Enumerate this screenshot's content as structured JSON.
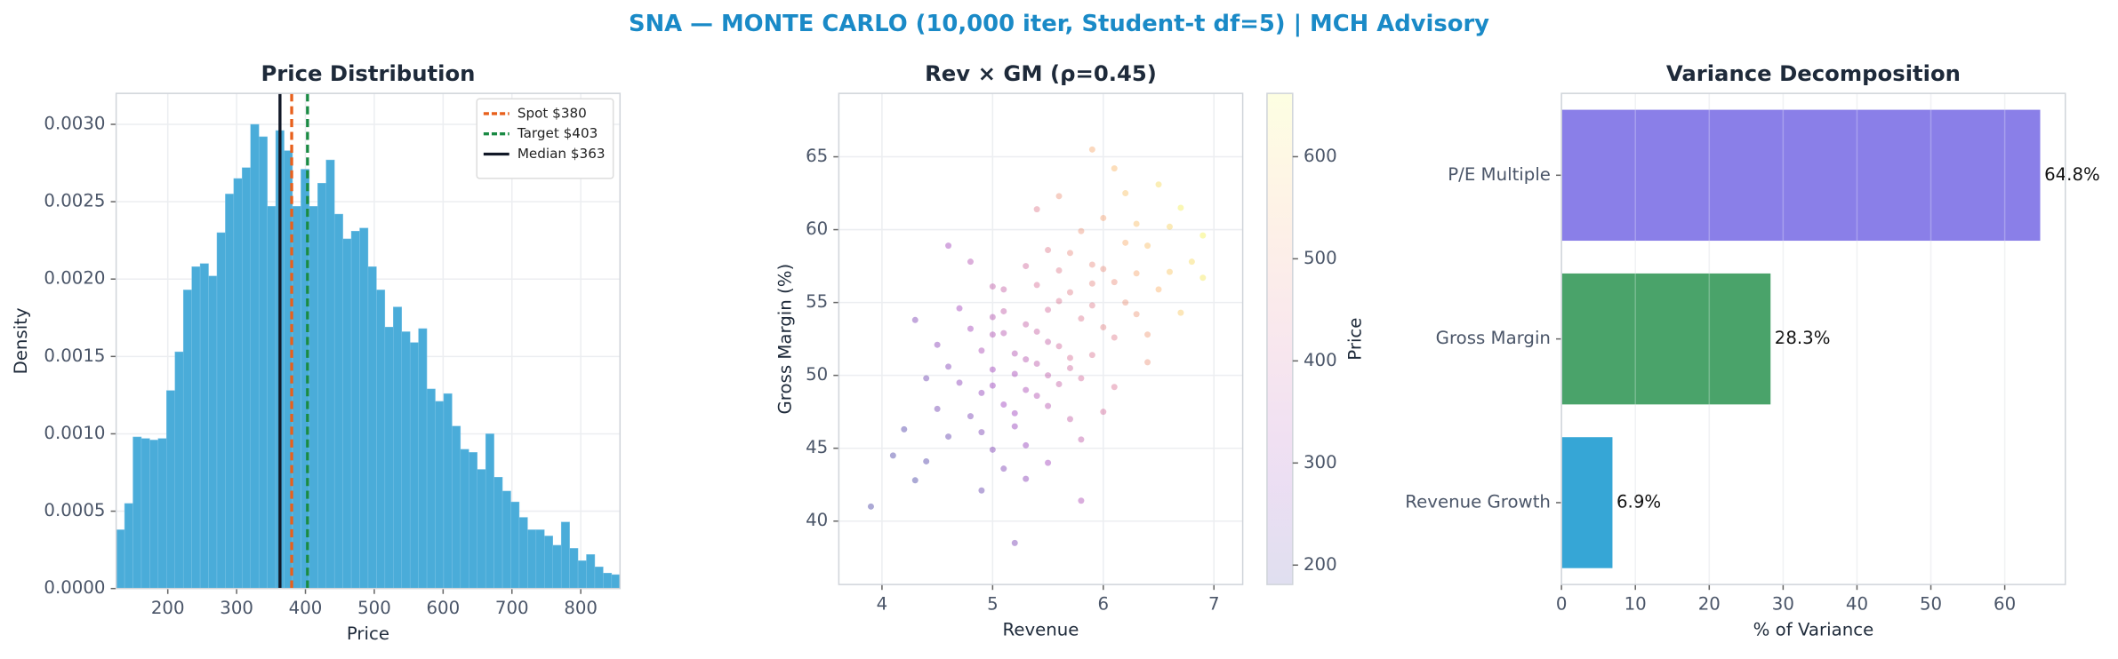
{
  "title": "SNA — MONTE CARLO (10,000 iter, Student-t df=5) | MCH Advisory",
  "chart_data": [
    {
      "type": "histogram",
      "title": "Price Distribution",
      "xlabel": "Price",
      "ylabel": "Density",
      "color": "#4aacd9",
      "bins": [
        125,
        137.2,
        149.4,
        161.6,
        173.8,
        186,
        198.2,
        210.4,
        222.6,
        234.8,
        247,
        259.2,
        271.4,
        283.6,
        295.8,
        308,
        320.2,
        332.4,
        344.6,
        356.8,
        369,
        381.2,
        393.4,
        405.6,
        417.8,
        430,
        442.2,
        454.4,
        466.6,
        478.8,
        491,
        503.2,
        515.4,
        527.6,
        539.8,
        552,
        564.2,
        576.4,
        588.6,
        600.8,
        613,
        625.2,
        637.4,
        649.6,
        661.8,
        674,
        686.2,
        698.4,
        710.6,
        722.8,
        735,
        747.2,
        759.4,
        771.6,
        783.8,
        796,
        808.2,
        820.4,
        832.6,
        844.8,
        857
      ],
      "values": [
        0.00038,
        0.00055,
        0.00098,
        0.00097,
        0.00096,
        0.00097,
        0.00128,
        0.00153,
        0.00193,
        0.00208,
        0.0021,
        0.00202,
        0.0023,
        0.00255,
        0.00265,
        0.00272,
        0.003,
        0.00292,
        0.00247,
        0.00296,
        0.00283,
        0.00247,
        0.00271,
        0.00247,
        0.00262,
        0.00277,
        0.00242,
        0.00226,
        0.00231,
        0.00233,
        0.00208,
        0.00193,
        0.00169,
        0.00182,
        0.00166,
        0.00159,
        0.00168,
        0.00129,
        0.00121,
        0.00126,
        0.00105,
        0.0009,
        0.00088,
        0.00077,
        0.001,
        0.00072,
        0.00063,
        0.00056,
        0.00046,
        0.00038,
        0.00038,
        0.00034,
        0.00028,
        0.00043,
        0.00026,
        0.00018,
        0.00022,
        0.00014,
        0.0001,
        9e-05
      ],
      "xlim": [
        125,
        857
      ],
      "xticks": [
        200,
        300,
        400,
        500,
        600,
        700,
        800
      ],
      "ylim": [
        0,
        0.0032
      ],
      "yticks": [
        {
          "value": 0,
          "label": "0.0000"
        },
        {
          "value": 0.0005,
          "label": "0.0005"
        },
        {
          "value": 0.001,
          "label": "0.0010"
        },
        {
          "value": 0.0015,
          "label": "0.0015"
        },
        {
          "value": 0.002,
          "label": "0.0020"
        },
        {
          "value": 0.0025,
          "label": "0.0025"
        },
        {
          "value": 0.003,
          "label": "0.0030"
        }
      ],
      "grid": true,
      "legend": "upper right",
      "vlines": [
        {
          "label": "Spot $380",
          "value": 380,
          "color": "#e8601c",
          "style": "dashed"
        },
        {
          "label": "Target $403",
          "value": 403,
          "color": "#1a8a43",
          "style": "dashed"
        },
        {
          "label": "Median $363",
          "value": 363,
          "color": "#111827",
          "style": "solid"
        }
      ]
    },
    {
      "type": "scatter",
      "title": "Rev × GM (ρ=0.45)",
      "xlabel": "Revenue",
      "ylabel": "Gross Margin (%)",
      "colorbar_label": "Price",
      "colormap": "plasma",
      "x": [
        5.2,
        5.5,
        4.8,
        6.1,
        5.9,
        5.0,
        5.3,
        4.6,
        6.4,
        5.7,
        5.1,
        6.0,
        5.4,
        4.9,
        5.6,
        6.3,
        5.2,
        4.4,
        5.8,
        6.6,
        5.3,
        5.0,
        6.2,
        5.5,
        4.7,
        5.9,
        6.8,
        5.1,
        4.5,
        5.6,
        6.1,
        5.4,
        4.9,
        5.7,
        6.5,
        5.2,
        4.3,
        5.8,
        6.0,
        5.0,
        5.5,
        6.3,
        4.8,
        5.9,
        5.3,
        6.7,
        5.6,
        4.6,
        6.2,
        5.1,
        5.4,
        6.9,
        4.2,
        5.7,
        5.0,
        6.4,
        5.8,
        4.9,
        5.3,
        6.0,
        5.5,
        4.7,
        6.6,
        5.2,
        3.9,
        5.6,
        6.1,
        4.4,
        5.9,
        5.4,
        6.5,
        5.1,
        5.7,
        4.8,
        6.3,
        5.0,
        5.5,
        6.0,
        4.5,
        5.8,
        6.2,
        5.3,
        4.1,
        6.4,
        5.6,
        5.2,
        5.9,
        4.6,
        6.7,
        5.4,
        5.1,
        5.8,
        4.3,
        6.1,
        5.5,
        4.9,
        5.7,
        6.9,
        5.0,
        5.3
      ],
      "y": [
        50.1,
        52.3,
        47.2,
        56.4,
        54.8,
        49.3,
        53.5,
        45.8,
        58.9,
        51.2,
        48.0,
        57.3,
        50.8,
        51.7,
        55.1,
        54.2,
        46.5,
        44.1,
        53.9,
        60.2,
        49.0,
        52.8,
        59.1,
        47.9,
        49.5,
        57.6,
        57.8,
        54.4,
        47.7,
        52.0,
        52.6,
        56.2,
        46.1,
        58.4,
        55.9,
        51.5,
        42.8,
        49.8,
        60.8,
        44.9,
        50.0,
        57.0,
        53.2,
        51.4,
        45.2,
        61.5,
        49.4,
        50.6,
        55.0,
        52.9,
        48.6,
        59.6,
        46.3,
        55.7,
        56.1,
        52.8,
        59.9,
        42.1,
        57.5,
        53.3,
        44.0,
        54.6,
        57.1,
        47.4,
        41.0,
        62.3,
        49.2,
        49.8,
        56.3,
        53.0,
        63.1,
        43.6,
        47.0,
        57.8,
        60.4,
        50.4,
        58.6,
        47.5,
        52.1,
        45.6,
        62.5,
        51.1,
        44.5,
        50.9,
        57.2,
        38.5,
        65.5,
        58.9,
        54.3,
        61.4,
        55.9,
        41.4,
        53.8,
        64.2,
        54.5,
        48.8,
        50.5,
        56.7,
        54.0,
        42.9
      ],
      "color_values": [
        318,
        378,
        250,
        487,
        447,
        298,
        378,
        220,
        565,
        418,
        302,
        484,
        362,
        328,
        430,
        500,
        288,
        195,
        436,
        598,
        326,
        338,
        540,
        350,
        274,
        478,
        610,
        370,
        236,
        404,
        448,
        420,
        252,
        478,
        548,
        342,
        182,
        410,
        520,
        262,
        368,
        530,
        316,
        430,
        286,
        640,
        380,
        262,
        492,
        352,
        340,
        650,
        196,
        452,
        372,
        508,
        496,
        224,
        404,
        462,
        310,
        310,
        580,
        300,
        186,
        492,
        428,
        230,
        470,
        384,
        612,
        254,
        378,
        344,
        566,
        310,
        444,
        410,
        270,
        368,
        572,
        350,
        190,
        492,
        446,
        250,
        532,
        312,
        584,
        444,
        380,
        330,
        254,
        556,
        410,
        282,
        400,
        632,
        348,
        270
      ],
      "xlim": [
        3.61,
        7.26
      ],
      "xticks": [
        4,
        5,
        6,
        7
      ],
      "ylim": [
        35.65,
        69.35
      ],
      "yticks": [
        40,
        45,
        50,
        55,
        60,
        65
      ],
      "clim": [
        181,
        662
      ],
      "cticks": [
        200,
        300,
        400,
        500,
        600
      ],
      "grid": true
    },
    {
      "type": "barh",
      "title": "Variance Decomposition",
      "xlabel": "% of Variance",
      "categories": [
        "P/E Multiple",
        "Gross Margin",
        "Revenue Growth"
      ],
      "values": [
        64.8,
        28.3,
        6.9
      ],
      "value_labels": [
        "64.8%",
        "28.3%",
        "6.9%"
      ],
      "colors": [
        "#8a7fe8",
        "#4aa36a",
        "#36a6d6"
      ],
      "xlim": [
        0,
        68.2
      ],
      "xticks": [
        0,
        10,
        20,
        30,
        40,
        50,
        60
      ],
      "grid": true
    }
  ]
}
